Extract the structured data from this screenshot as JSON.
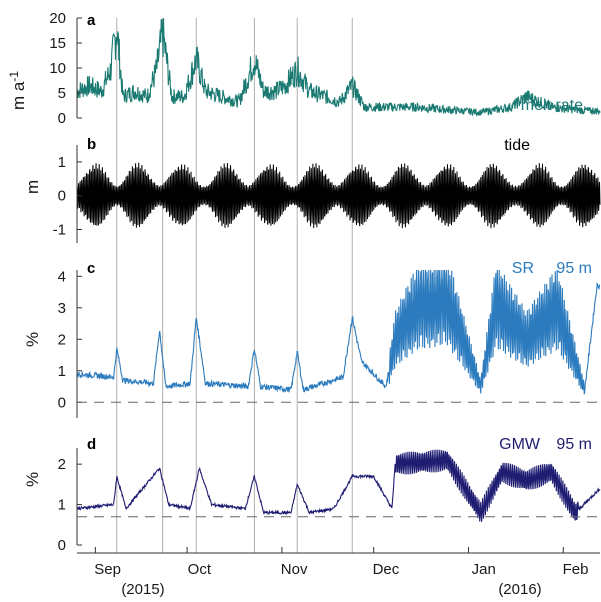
{
  "chart_data": {
    "type": "line",
    "x_axis": {
      "months": [
        "Sep",
        "Oct",
        "Nov",
        "Dec",
        "Jan",
        "Feb"
      ],
      "years": [
        "(2015)",
        "(2016)"
      ],
      "range": [
        "2015-08-26",
        "2016-02-13"
      ]
    },
    "event_lines": [
      "2015-09-08",
      "2015-09-23",
      "2015-10-04",
      "2015-10-23",
      "2015-11-06",
      "2015-11-24"
    ],
    "panels": [
      {
        "letter": "a",
        "ylabel": "m a",
        "ylabel_sup": "-1",
        "ylim": [
          0,
          20
        ],
        "yticks": [
          "0",
          "5",
          "10",
          "15",
          "20"
        ],
        "series_label": "melt rate",
        "color": "#1a7a72",
        "data": [
          [
            "2015-08-26",
            5
          ],
          [
            "2015-08-30",
            6
          ],
          [
            "2015-09-03",
            5
          ],
          [
            "2015-09-06",
            9
          ],
          [
            "2015-09-08",
            17
          ],
          [
            "2015-09-10",
            4
          ],
          [
            "2015-09-14",
            5
          ],
          [
            "2015-09-18",
            4
          ],
          [
            "2015-09-21",
            9
          ],
          [
            "2015-09-23",
            16
          ],
          [
            "2015-09-26",
            4
          ],
          [
            "2015-09-30",
            4
          ],
          [
            "2015-10-04",
            11
          ],
          [
            "2015-10-07",
            5
          ],
          [
            "2015-10-12",
            4
          ],
          [
            "2015-10-18",
            3
          ],
          [
            "2015-10-23",
            11
          ],
          [
            "2015-10-26",
            5
          ],
          [
            "2015-10-30",
            5
          ],
          [
            "2015-11-02",
            6
          ],
          [
            "2015-11-06",
            9
          ],
          [
            "2015-11-10",
            5
          ],
          [
            "2015-11-15",
            4
          ],
          [
            "2015-11-20",
            3
          ],
          [
            "2015-11-24",
            6
          ],
          [
            "2015-11-28",
            2
          ],
          [
            "2015-12-05",
            2
          ],
          [
            "2015-12-15",
            2
          ],
          [
            "2015-12-25",
            1.5
          ],
          [
            "2016-01-05",
            1
          ],
          [
            "2016-01-15",
            2
          ],
          [
            "2016-01-20",
            4
          ],
          [
            "2016-01-28",
            2
          ],
          [
            "2016-02-05",
            1.5
          ],
          [
            "2016-02-13",
            1.2
          ]
        ]
      },
      {
        "letter": "b",
        "ylabel": "m",
        "ylim": [
          -1.4,
          1.5
        ],
        "yticks": [
          "-1",
          "0",
          "1"
        ],
        "series_label": "tide",
        "color": "#000000",
        "spring_tides": [
          "2015-09-01",
          "2015-09-15",
          "2015-09-29",
          "2015-10-14",
          "2015-10-28",
          "2015-11-12",
          "2015-11-26",
          "2015-12-11",
          "2015-12-25",
          "2016-01-09",
          "2016-01-24",
          "2016-02-08"
        ],
        "amplitude_range": [
          0.3,
          1.0
        ]
      },
      {
        "letter": "c",
        "ylabel": "%",
        "ylim": [
          -0.5,
          4.2
        ],
        "yticks": [
          "0",
          "1",
          "2",
          "3",
          "4"
        ],
        "baseline": 0,
        "series_label": "SR",
        "depth_label": "95 m",
        "color": "#2b7bbe",
        "data": [
          [
            "2015-08-26",
            0.9
          ],
          [
            "2015-09-07",
            0.8
          ],
          [
            "2015-09-08",
            1.7
          ],
          [
            "2015-09-10",
            0.7
          ],
          [
            "2015-09-20",
            0.6
          ],
          [
            "2015-09-22",
            2.3
          ],
          [
            "2015-09-24",
            0.5
          ],
          [
            "2015-10-02",
            0.6
          ],
          [
            "2015-10-04",
            2.7
          ],
          [
            "2015-10-07",
            0.6
          ],
          [
            "2015-10-21",
            0.5
          ],
          [
            "2015-10-23",
            1.7
          ],
          [
            "2015-10-25",
            0.5
          ],
          [
            "2015-11-04",
            0.4
          ],
          [
            "2015-11-06",
            1.6
          ],
          [
            "2015-11-08",
            0.4
          ],
          [
            "2015-11-21",
            0.8
          ],
          [
            "2015-11-24",
            2.7
          ],
          [
            "2015-11-27",
            1.3
          ],
          [
            "2015-12-05",
            0.5
          ],
          [
            "2015-12-08",
            2.0
          ],
          [
            "2015-12-15",
            3.0
          ],
          [
            "2015-12-25",
            3.3
          ],
          [
            "2016-01-05",
            0.5
          ],
          [
            "2016-01-10",
            3.1
          ],
          [
            "2016-01-20",
            2.0
          ],
          [
            "2016-01-30",
            3.0
          ],
          [
            "2016-02-08",
            0.4
          ],
          [
            "2016-02-12",
            3.7
          ]
        ]
      },
      {
        "letter": "d",
        "ylabel": "%",
        "ylim": [
          0,
          2.4
        ],
        "yticks": [
          "0",
          "1",
          "2"
        ],
        "baseline": 0.7,
        "series_label": "GMW",
        "depth_label": "95 m",
        "color": "#1f1d72",
        "data": [
          [
            "2015-08-26",
            0.9
          ],
          [
            "2015-09-07",
            1.0
          ],
          [
            "2015-09-08",
            1.7
          ],
          [
            "2015-09-11",
            0.9
          ],
          [
            "2015-09-22",
            1.9
          ],
          [
            "2015-09-25",
            1.0
          ],
          [
            "2015-10-02",
            0.9
          ],
          [
            "2015-10-05",
            1.9
          ],
          [
            "2015-10-09",
            1.0
          ],
          [
            "2015-10-20",
            0.9
          ],
          [
            "2015-10-23",
            1.7
          ],
          [
            "2015-10-26",
            0.8
          ],
          [
            "2015-11-04",
            0.8
          ],
          [
            "2015-11-06",
            1.5
          ],
          [
            "2015-11-10",
            0.8
          ],
          [
            "2015-11-18",
            0.9
          ],
          [
            "2015-11-24",
            1.7
          ],
          [
            "2015-12-01",
            1.7
          ],
          [
            "2015-12-07",
            0.9
          ],
          [
            "2015-12-08",
            2.0
          ],
          [
            "2015-12-25",
            2.1
          ],
          [
            "2016-01-05",
            0.8
          ],
          [
            "2016-01-12",
            1.8
          ],
          [
            "2016-01-20",
            1.6
          ],
          [
            "2016-01-28",
            1.8
          ],
          [
            "2016-02-05",
            0.8
          ],
          [
            "2016-02-13",
            1.4
          ]
        ]
      }
    ]
  }
}
